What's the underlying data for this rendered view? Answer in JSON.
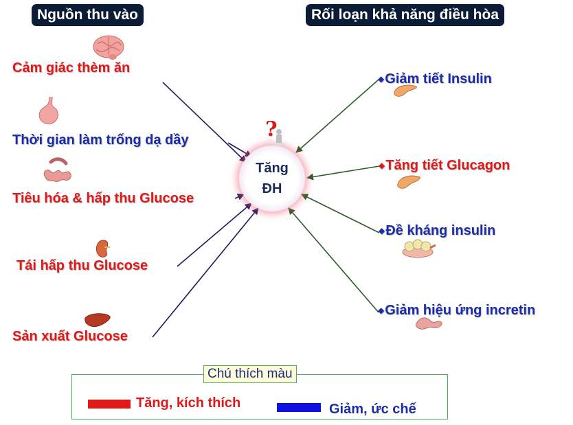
{
  "header_left": "Nguồn thu vào",
  "header_right": "Rối loạn khả năng điều hòa",
  "center": {
    "line1": "Tăng",
    "line2": "ĐH"
  },
  "left_items": [
    {
      "label": "Cảm giác thèm ăn",
      "color": "red",
      "icon": "brain-icon"
    },
    {
      "label": "Thời gian làm trống dạ dầy",
      "color": "blue",
      "icon": "stomach-icon"
    },
    {
      "label": "Tiêu hóa & hấp thu Glucose",
      "color": "red",
      "icon": "intestine-icon"
    },
    {
      "label": "Tái hấp thu Glucose",
      "color": "red",
      "icon": "kidney-icon"
    },
    {
      "label": "Sản xuất Glucose",
      "color": "red",
      "icon": "liver-icon"
    }
  ],
  "right_items": [
    {
      "label": "Giảm tiết Insulin",
      "color": "blue",
      "icon": "pancreas-icon"
    },
    {
      "label": "Tăng tiết Glucagon",
      "color": "red",
      "icon": "pancreas-icon"
    },
    {
      "label": "Đề kháng insulin",
      "color": "blue",
      "icon": "fat-tissue-icon"
    },
    {
      "label": "Giảm hiệu ứng incretin",
      "color": "blue",
      "icon": "intestine-icon"
    }
  ],
  "legend": {
    "title": "Chú thích màu",
    "items": [
      {
        "label": "Tăng, kích thích",
        "color": "#e01818"
      },
      {
        "label": "Giảm, ức chế",
        "color": "#1010e0"
      }
    ]
  },
  "colors": {
    "red": "#e01818",
    "blue": "#1c2ca8",
    "left_arrow": "#1c1c5a",
    "right_arrow": "#2f5a2a",
    "header_bg": "#0c1c36"
  }
}
